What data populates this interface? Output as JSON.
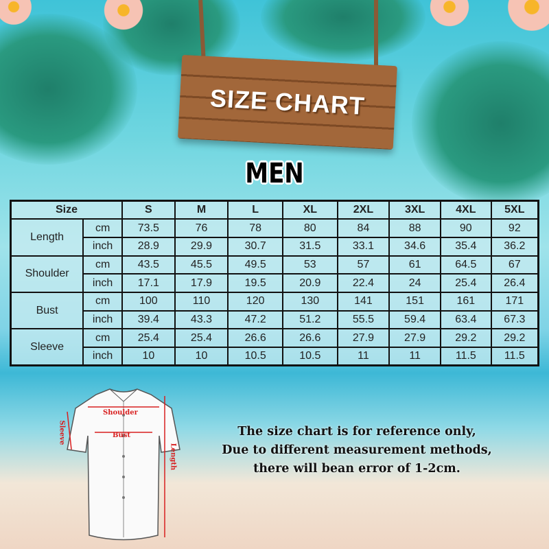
{
  "title": "SIZE CHART",
  "subtitle": "MEN",
  "table": {
    "header_label": "Size",
    "sizes": [
      "S",
      "M",
      "L",
      "XL",
      "2XL",
      "3XL",
      "4XL",
      "5XL"
    ],
    "rows": [
      {
        "measure": "Length",
        "cm": [
          "73.5",
          "76",
          "78",
          "80",
          "84",
          "88",
          "90",
          "92"
        ],
        "inch": [
          "28.9",
          "29.9",
          "30.7",
          "31.5",
          "33.1",
          "34.6",
          "35.4",
          "36.2"
        ]
      },
      {
        "measure": "Shoulder",
        "cm": [
          "43.5",
          "45.5",
          "49.5",
          "53",
          "57",
          "61",
          "64.5",
          "67"
        ],
        "inch": [
          "17.1",
          "17.9",
          "19.5",
          "20.9",
          "22.4",
          "24",
          "25.4",
          "26.4"
        ]
      },
      {
        "measure": "Bust",
        "cm": [
          "100",
          "110",
          "120",
          "130",
          "141",
          "151",
          "161",
          "171"
        ],
        "inch": [
          "39.4",
          "43.3",
          "47.2",
          "51.2",
          "55.5",
          "59.4",
          "63.4",
          "67.3"
        ]
      },
      {
        "measure": "Sleeve",
        "cm": [
          "25.4",
          "25.4",
          "26.6",
          "26.6",
          "27.9",
          "27.9",
          "29.2",
          "29.2"
        ],
        "inch": [
          "10",
          "10",
          "10.5",
          "10.5",
          "11",
          "11",
          "11.5",
          "11.5"
        ]
      }
    ],
    "unit_cm": "cm",
    "unit_inch": "inch"
  },
  "diagram": {
    "shoulder": "Shoulder",
    "bust": "Bust",
    "sleeve": "Sleeve",
    "length": "Length",
    "accent": "#d81e1e"
  },
  "note": [
    "The size chart is for reference only,",
    "Due to different measurement methods,",
    "there will bean error of 1-2cm."
  ]
}
